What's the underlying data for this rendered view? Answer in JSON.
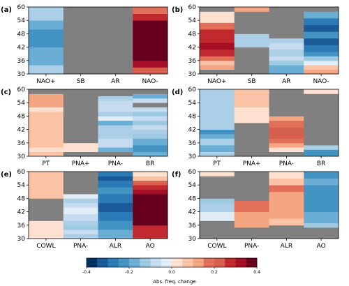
{
  "chart_data": {
    "type": "heatmap",
    "y_ticks": [
      30,
      36,
      42,
      48,
      54,
      60
    ],
    "ylim": [
      30,
      60
    ],
    "missing_color": "#808080",
    "colorbar": {
      "label": "Abs. freq. change",
      "vmin": -0.4,
      "vmax": 0.4,
      "tick_values": [
        -0.4,
        -0.2,
        0.0,
        0.2,
        0.4
      ],
      "tick_labels": [
        "-0.4",
        "-0.2",
        "0.0",
        "0.2",
        "0.4"
      ],
      "colors": [
        "#053061",
        "#1a5a99",
        "#2c7bb6",
        "#4393c3",
        "#6aaed6",
        "#9ecae1",
        "#c6dbef",
        "#e1edf6",
        "#fde0cf",
        "#fbc3a6",
        "#f4a582",
        "#e26f5a",
        "#d6604d",
        "#c0292d",
        "#a50f26",
        "#67001f"
      ]
    },
    "panels": [
      {
        "label": "(a)",
        "categories": [
          "NAO+",
          "SB",
          "AR",
          "NAO-"
        ],
        "columns": [
          [
            [
              30,
              34,
              "#aacfe6"
            ],
            [
              34,
              38,
              "#6aaed6"
            ],
            [
              38,
              42,
              "#6aaed6"
            ],
            [
              42,
              46,
              "#4393c3"
            ],
            [
              46,
              50,
              "#4393c3"
            ],
            [
              50,
              54,
              "#6aaed6"
            ],
            [
              54,
              58,
              "#aacfe6"
            ],
            [
              58,
              60,
              "#aacfe6"
            ]
          ],
          [
            [
              30,
              60,
              null
            ]
          ],
          [
            [
              30,
              60,
              null
            ]
          ],
          [
            [
              30,
              33,
              "#d6604d"
            ],
            [
              33,
              36,
              "#a50f26"
            ],
            [
              36,
              54,
              "#67001f"
            ],
            [
              54,
              57,
              "#c0292d"
            ],
            [
              57,
              60,
              "#e26f5a"
            ]
          ]
        ]
      },
      {
        "label": "(b)",
        "categories": [
          "NAO+",
          "SB",
          "AR",
          "NAO-"
        ],
        "columns": [
          [
            [
              30,
              32,
              null
            ],
            [
              32,
              34,
              "#f4a582"
            ],
            [
              34,
              36,
              "#fbc3a6"
            ],
            [
              36,
              38,
              "#e26f5a"
            ],
            [
              38,
              41,
              "#c0292d"
            ],
            [
              41,
              44,
              "#a50f26"
            ],
            [
              44,
              47,
              "#c0292d"
            ],
            [
              47,
              50,
              "#c0292d"
            ],
            [
              50,
              53,
              "#e26f5a"
            ],
            [
              53,
              56,
              "#fde0cf"
            ],
            [
              56,
              58,
              "#fde0cf"
            ],
            [
              58,
              60,
              null
            ]
          ],
          [
            [
              30,
              42,
              null
            ],
            [
              42,
              45,
              "#aacfe6"
            ],
            [
              45,
              48,
              "#aacfe6"
            ],
            [
              48,
              58,
              null
            ],
            [
              58,
              60,
              "#f4a582"
            ]
          ],
          [
            [
              30,
              32,
              "#6aaed6"
            ],
            [
              32,
              34,
              "#6aaed6"
            ],
            [
              34,
              36,
              "#9ecae1"
            ],
            [
              36,
              38,
              "#c6dbef"
            ],
            [
              38,
              41,
              "#aacfe6"
            ],
            [
              41,
              44,
              "#c6dbef"
            ],
            [
              44,
              46,
              "#aacfe6"
            ],
            [
              46,
              60,
              null
            ]
          ],
          [
            [
              30,
              32,
              "#f4a582"
            ],
            [
              32,
              34,
              "#fbc3a6"
            ],
            [
              34,
              36,
              "#e1edf6"
            ],
            [
              36,
              38,
              "#9ecae1"
            ],
            [
              38,
              40,
              "#4393c3"
            ],
            [
              40,
              43,
              "#2c7bb6"
            ],
            [
              43,
              46,
              "#1a5a99"
            ],
            [
              46,
              49,
              "#4393c3"
            ],
            [
              49,
              52,
              "#1a5a99"
            ],
            [
              52,
              55,
              "#2c7bb6"
            ],
            [
              55,
              58,
              "#6aaed6"
            ],
            [
              58,
              60,
              null
            ]
          ]
        ]
      },
      {
        "label": "(c)",
        "categories": [
          "PT",
          "PNA+",
          "PNA-",
          "BR"
        ],
        "columns": [
          [
            [
              30,
              32,
              "#fbc3a6"
            ],
            [
              32,
              34,
              "#fde0cf"
            ],
            [
              34,
              36,
              "#fbc3a6"
            ],
            [
              36,
              44,
              "#fbc3a6"
            ],
            [
              44,
              50,
              "#fbc3a6"
            ],
            [
              50,
              52,
              "#fde0cf"
            ],
            [
              52,
              58,
              "#f4a582"
            ],
            [
              58,
              60,
              null
            ]
          ],
          [
            [
              30,
              32,
              null
            ],
            [
              32,
              36,
              "#fde0cf"
            ],
            [
              36,
              60,
              null
            ]
          ],
          [
            [
              30,
              32,
              null
            ],
            [
              32,
              34,
              "#6aaed6"
            ],
            [
              34,
              38,
              "#c6dbef"
            ],
            [
              38,
              44,
              "#aacfe6"
            ],
            [
              44,
              46,
              "#6aaed6"
            ],
            [
              46,
              48,
              "#e1edf6"
            ],
            [
              48,
              50,
              "#aacfe6"
            ],
            [
              50,
              55,
              "#c6dbef"
            ],
            [
              55,
              57,
              "#aacfe6"
            ],
            [
              57,
              60,
              null
            ]
          ],
          [
            [
              30,
              32,
              "#6aaed6"
            ],
            [
              32,
              35,
              "#4393c3"
            ],
            [
              35,
              38,
              "#6aaed6"
            ],
            [
              38,
              40,
              "#9ecae1"
            ],
            [
              40,
              42,
              "#aacfe6"
            ],
            [
              42,
              44,
              "#c6dbef"
            ],
            [
              44,
              46,
              "#9ecae1"
            ],
            [
              46,
              48,
              "#c6dbef"
            ],
            [
              48,
              50,
              "#9ecae1"
            ],
            [
              50,
              52,
              "#c6dbef"
            ],
            [
              52,
              54,
              null
            ],
            [
              54,
              56,
              "#c6dbef"
            ],
            [
              56,
              58,
              "#6aaed6"
            ],
            [
              58,
              60,
              null
            ]
          ]
        ]
      },
      {
        "label": "(d)",
        "categories": [
          "PT",
          "PNA+",
          "PNA-",
          "BR"
        ],
        "columns": [
          [
            [
              30,
              32,
              "#aacfe6"
            ],
            [
              32,
              35,
              "#6aaed6"
            ],
            [
              35,
              38,
              "#aacfe6"
            ],
            [
              38,
              40,
              "#6aaed6"
            ],
            [
              40,
              42,
              "#4393c3"
            ],
            [
              42,
              44,
              "#aacfe6"
            ],
            [
              44,
              60,
              "#aacfe6"
            ]
          ],
          [
            [
              30,
              45,
              null
            ],
            [
              45,
              52,
              "#fde0cf"
            ],
            [
              52,
              57,
              "#fbc3a6"
            ],
            [
              57,
              60,
              "#fbc3a6"
            ]
          ],
          [
            [
              30,
              32,
              null
            ],
            [
              32,
              34,
              "#fde0cf"
            ],
            [
              34,
              36,
              "#f4a582"
            ],
            [
              36,
              38,
              "#e26f5a"
            ],
            [
              38,
              43,
              "#d6604d"
            ],
            [
              43,
              46,
              "#e26f5a"
            ],
            [
              46,
              48,
              "#f4a582"
            ],
            [
              48,
              60,
              null
            ]
          ],
          [
            [
              30,
              33,
              "#4393c3"
            ],
            [
              33,
              35,
              "#aacfe6"
            ],
            [
              35,
              58,
              null
            ],
            [
              58,
              60,
              "#fde0cf"
            ]
          ]
        ]
      },
      {
        "label": "(e)",
        "categories": [
          "COWL",
          "PNA-",
          "ALR",
          "AO"
        ],
        "columns": [
          [
            [
              30,
              38,
              "#fde0cf"
            ],
            [
              38,
              44,
              null
            ],
            [
              44,
              48,
              null
            ],
            [
              48,
              54,
              "#fbc3a6"
            ],
            [
              54,
              60,
              "#fbc3a6"
            ]
          ],
          [
            [
              30,
              32,
              "#aacfe6"
            ],
            [
              32,
              34,
              "#c6dbef"
            ],
            [
              34,
              36,
              "#9ecae1"
            ],
            [
              36,
              38,
              "#aacfe6"
            ],
            [
              38,
              41,
              "#c6dbef"
            ],
            [
              41,
              44,
              "#e1edf6"
            ],
            [
              44,
              46,
              "#c6dbef"
            ],
            [
              46,
              48,
              "#aacfe6"
            ],
            [
              48,
              50,
              "#e1edf6"
            ],
            [
              50,
              60,
              null
            ]
          ],
          [
            [
              30,
              34,
              "#6aaed6"
            ],
            [
              34,
              38,
              "#4393c3"
            ],
            [
              38,
              42,
              "#2c7bb6"
            ],
            [
              42,
              46,
              "#1a5a99"
            ],
            [
              46,
              50,
              "#2c7bb6"
            ],
            [
              50,
              53,
              "#4393c3"
            ],
            [
              53,
              56,
              "#2c7bb6"
            ],
            [
              56,
              58,
              "#1a5a99"
            ],
            [
              58,
              60,
              "#2c7bb6"
            ]
          ],
          [
            [
              30,
              34,
              "#c0292d"
            ],
            [
              34,
              36,
              "#c0292d"
            ],
            [
              36,
              50,
              "#67001f"
            ],
            [
              50,
              52,
              "#a50f26"
            ],
            [
              52,
              54,
              "#c0292d"
            ],
            [
              54,
              56,
              "#d6604d"
            ],
            [
              56,
              58,
              "#fbc3a6"
            ],
            [
              58,
              60,
              "#fde0cf"
            ]
          ]
        ]
      },
      {
        "label": "(f)",
        "categories": [
          "COWL",
          "PNA-",
          "ALR",
          "AO"
        ],
        "columns": [
          [
            [
              30,
              38,
              null
            ],
            [
              38,
              42,
              "#e1edf6"
            ],
            [
              42,
              46,
              "#aacfe6"
            ],
            [
              46,
              48,
              "#9ecae1"
            ],
            [
              48,
              56,
              null
            ],
            [
              56,
              58,
              null
            ],
            [
              58,
              60,
              "#fde0cf"
            ]
          ],
          [
            [
              30,
              35,
              null
            ],
            [
              35,
              38,
              "#f4a582"
            ],
            [
              38,
              40,
              "#f4a582"
            ],
            [
              40,
              42,
              "#f4a582"
            ],
            [
              42,
              44,
              "#e26f5a"
            ],
            [
              44,
              47,
              "#e26f5a"
            ],
            [
              47,
              60,
              null
            ]
          ],
          [
            [
              30,
              36,
              null
            ],
            [
              36,
              39,
              "#fbc3a6"
            ],
            [
              39,
              42,
              "#f4a582"
            ],
            [
              42,
              48,
              "#f4a582"
            ],
            [
              48,
              51,
              "#f4a582"
            ],
            [
              51,
              54,
              "#e26f5a"
            ],
            [
              54,
              57,
              "#fbc3a6"
            ],
            [
              57,
              60,
              "#fde0cf"
            ]
          ],
          [
            [
              30,
              35,
              null
            ],
            [
              35,
              37,
              "#9ecae1"
            ],
            [
              37,
              42,
              "#6aaed6"
            ],
            [
              42,
              46,
              "#4393c3"
            ],
            [
              46,
              50,
              "#4393c3"
            ],
            [
              50,
              54,
              "#4393c3"
            ],
            [
              54,
              57,
              "#6aaed6"
            ],
            [
              57,
              60,
              "#4393c3"
            ]
          ]
        ]
      }
    ]
  }
}
